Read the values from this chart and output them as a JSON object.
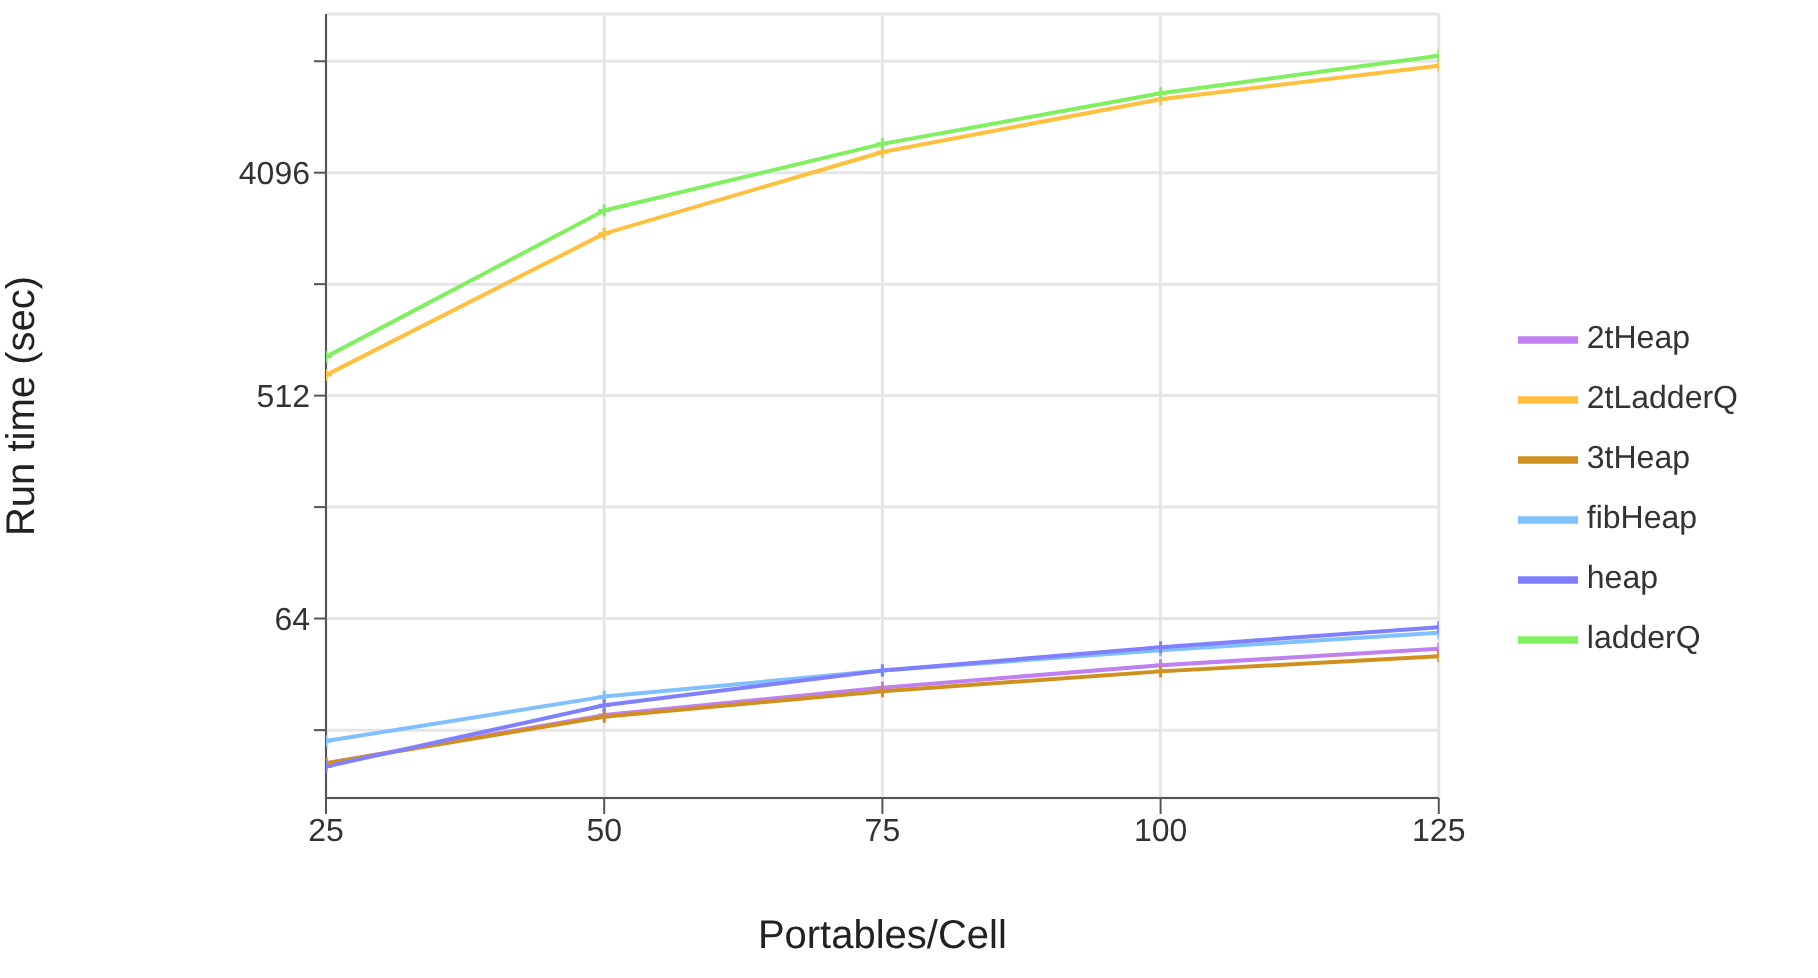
{
  "chart_data": {
    "type": "line",
    "xlabel": "Portables/Cell",
    "ylabel": "Run time (sec)",
    "x": [
      25,
      50,
      75,
      100,
      125
    ],
    "xlim": [
      25,
      125
    ],
    "xticks": [
      25,
      50,
      75,
      100,
      125
    ],
    "log": "y",
    "ylim": [
      12,
      18000
    ],
    "yticks": [
      {
        "value": 22.6,
        "label": null
      },
      64,
      {
        "value": 181,
        "label": null
      },
      512,
      {
        "value": 1448,
        "label": null
      },
      4096,
      {
        "value": 11585,
        "label": null
      }
    ],
    "grid": true,
    "legend": "right",
    "marker": "cross",
    "line_style": "solid",
    "series": [
      {
        "name": "2tHeap",
        "color": "#c080f0",
        "values": [
          16.6,
          26,
          33.6,
          41.4,
          48.3
        ]
      },
      {
        "name": "2tLadderQ",
        "color": "#ffc040",
        "values": [
          620,
          2320,
          4970,
          8130,
          11100
        ]
      },
      {
        "name": "3tHeap",
        "color": "#d09020",
        "values": [
          16.6,
          25.6,
          32.5,
          39.1,
          45
        ]
      },
      {
        "name": "fibHeap",
        "color": "#80c0ff",
        "values": [
          20.4,
          30.9,
          39.4,
          47.6,
          56
        ]
      },
      {
        "name": "heap",
        "color": "#8080ff",
        "values": [
          16.1,
          28.5,
          39.4,
          49,
          59
        ]
      },
      {
        "name": "ladderQ",
        "color": "#80f060",
        "values": [
          735,
          2880,
          5360,
          8600,
          12200
        ]
      }
    ]
  }
}
